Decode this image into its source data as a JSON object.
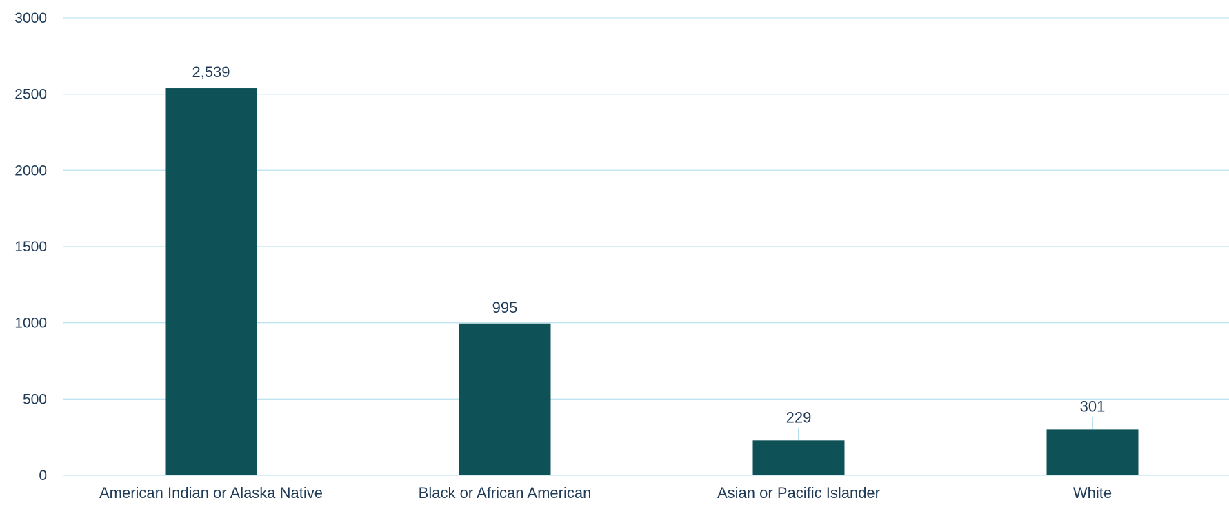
{
  "chart_data": {
    "type": "bar",
    "categories": [
      "American Indian or Alaska Native",
      "Black or African American",
      "Asian or Pacific Islander",
      "White"
    ],
    "values": [
      2539,
      995,
      229,
      301
    ],
    "data_labels": [
      "2,539",
      "995",
      "229",
      "301"
    ],
    "ylim": [
      0,
      3000
    ],
    "yticks": [
      0,
      500,
      1000,
      1500,
      2000,
      2500,
      3000
    ],
    "ytick_labels": [
      "0",
      "500",
      "1000",
      "1500",
      "2000",
      "2500",
      "3000"
    ],
    "grid": true,
    "legend": "none",
    "title": "",
    "xlabel": "",
    "ylabel": "",
    "colors": {
      "bar": "#0e5257",
      "gridline": "#bfe3ef",
      "text": "#1f3b57"
    }
  }
}
